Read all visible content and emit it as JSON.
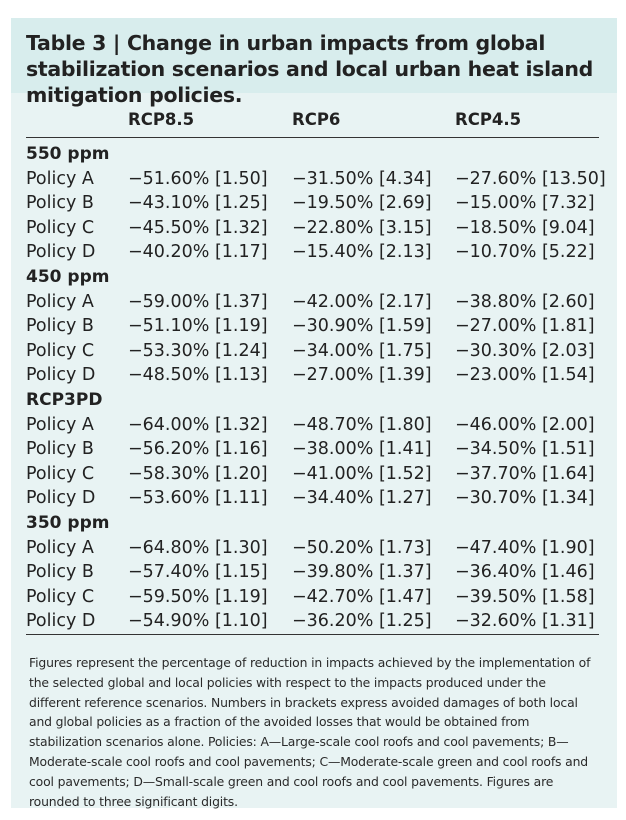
{
  "table": {
    "title": "Table 3 | Change in urban impacts from global stabilization scenarios and local urban heat island mitigation policies.",
    "columns": [
      "RCP8.5",
      "RCP6",
      "RCP4.5"
    ],
    "groups": [
      {
        "label": "550 ppm",
        "rows": [
          {
            "policy": "Policy A",
            "values": [
              "−51.60% [1.50]",
              "−31.50% [4.34]",
              "−27.60% [13.50]"
            ]
          },
          {
            "policy": "Policy B",
            "values": [
              "−43.10% [1.25]",
              "−19.50% [2.69]",
              "−15.00% [7.32]"
            ]
          },
          {
            "policy": "Policy C",
            "values": [
              "−45.50% [1.32]",
              "−22.80% [3.15]",
              "−18.50% [9.04]"
            ]
          },
          {
            "policy": "Policy D",
            "values": [
              "−40.20% [1.17]",
              "−15.40% [2.13]",
              "−10.70% [5.22]"
            ]
          }
        ]
      },
      {
        "label": "450 ppm",
        "rows": [
          {
            "policy": "Policy A",
            "values": [
              "−59.00% [1.37]",
              "−42.00% [2.17]",
              "−38.80% [2.60]"
            ]
          },
          {
            "policy": "Policy B",
            "values": [
              "−51.10% [1.19]",
              "−30.90% [1.59]",
              "−27.00% [1.81]"
            ]
          },
          {
            "policy": "Policy C",
            "values": [
              "−53.30% [1.24]",
              "−34.00% [1.75]",
              "−30.30% [2.03]"
            ]
          },
          {
            "policy": "Policy D",
            "values": [
              "−48.50% [1.13]",
              "−27.00% [1.39]",
              "−23.00% [1.54]"
            ]
          }
        ]
      },
      {
        "label": "RCP3PD",
        "rows": [
          {
            "policy": "Policy A",
            "values": [
              "−64.00% [1.32]",
              "−48.70% [1.80]",
              "−46.00% [2.00]"
            ]
          },
          {
            "policy": "Policy B",
            "values": [
              "−56.20% [1.16]",
              "−38.00% [1.41]",
              "−34.50% [1.51]"
            ]
          },
          {
            "policy": "Policy C",
            "values": [
              "−58.30% [1.20]",
              "−41.00% [1.52]",
              "−37.70% [1.64]"
            ]
          },
          {
            "policy": "Policy D",
            "values": [
              "−53.60% [1.11]",
              "−34.40% [1.27]",
              "−30.70% [1.34]"
            ]
          }
        ]
      },
      {
        "label": "350 ppm",
        "rows": [
          {
            "policy": "Policy A",
            "values": [
              "−64.80% [1.30]",
              "−50.20% [1.73]",
              "−47.40% [1.90]"
            ]
          },
          {
            "policy": "Policy B",
            "values": [
              "−57.40% [1.15]",
              "−39.80% [1.37]",
              "−36.40% [1.46]"
            ]
          },
          {
            "policy": "Policy C",
            "values": [
              "−59.50% [1.19]",
              "−42.70% [1.47]",
              "−39.50% [1.58]"
            ]
          },
          {
            "policy": "Policy D",
            "values": [
              "−54.90% [1.10]",
              "−36.20% [1.25]",
              "−32.60% [1.31]"
            ]
          }
        ]
      }
    ],
    "footnote": "Figures represent the percentage of reduction in impacts achieved by the implementation of the selected global and local policies with respect to the impacts produced under the different reference scenarios. Numbers in brackets express avoided damages of both local and global policies as a fraction of the avoided losses that would be obtained from stabilization scenarios alone. Policies: A—Large-scale cool roofs and cool pavements; B—Moderate-scale cool roofs and cool pavements; C—Moderate-scale green and cool roofs and cool pavements; D—Small-scale green and cool roofs and cool pavements. Figures are rounded to three significant digits."
  }
}
